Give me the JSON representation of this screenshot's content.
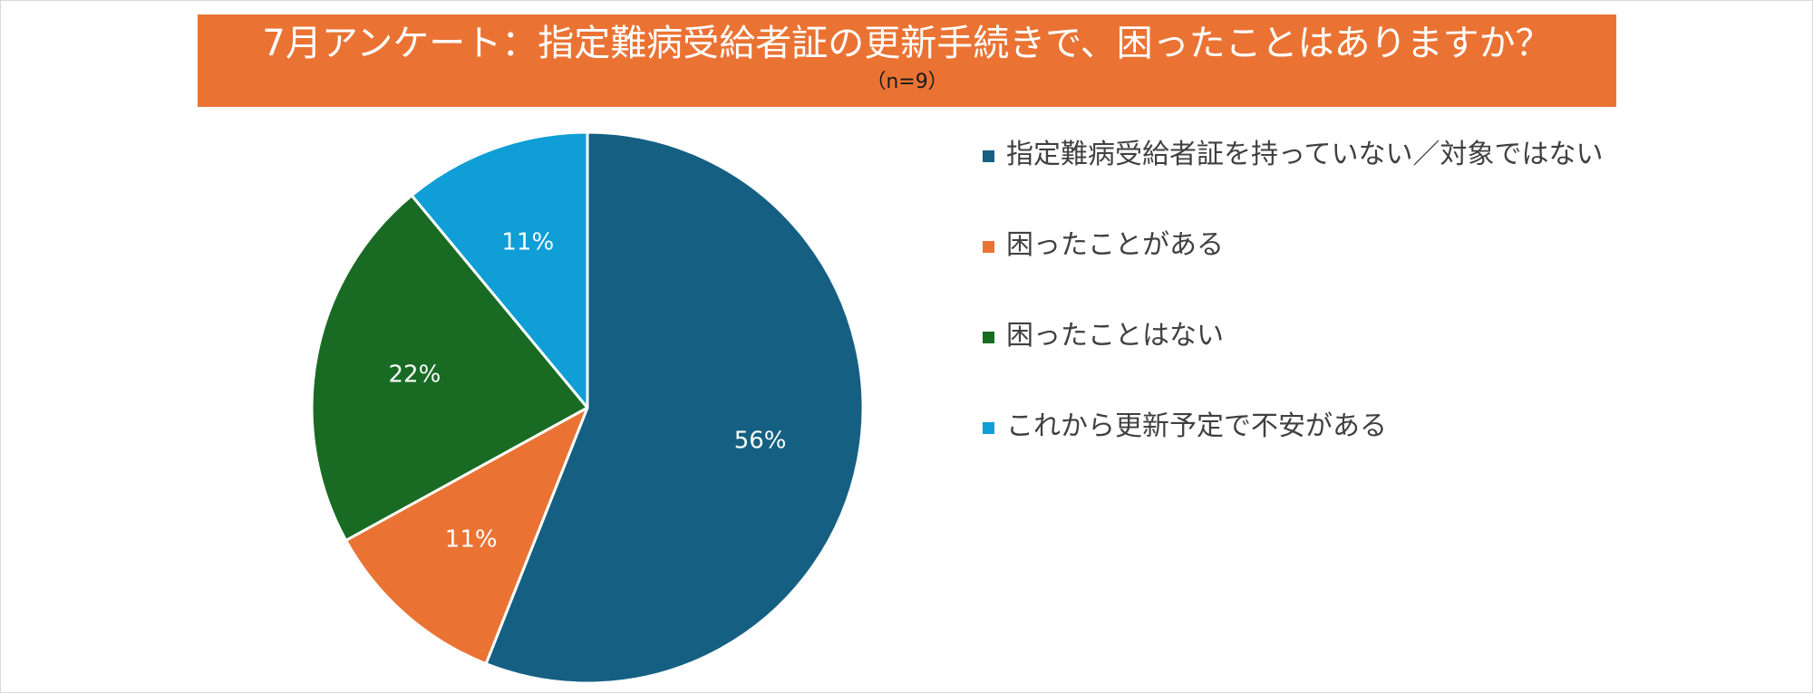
{
  "title": "7月アンケート：指定難病受給者証の更新手続きで、困ったことはありますか？",
  "subtitle": "（n=9）",
  "chart_data": {
    "type": "pie",
    "title": "7月アンケート：指定難病受給者証の更新手続きで、困ったことはありますか？",
    "subtitle": "（n=9）",
    "legend_position": "right",
    "slices": [
      {
        "label": "指定難病受給者証を持っていない／対象ではない",
        "value": 56,
        "display": "56%",
        "color": "#156082"
      },
      {
        "label": "困ったことがある",
        "value": 11,
        "display": "11%",
        "color": "#ea7334"
      },
      {
        "label": "困ったことはない",
        "value": 22,
        "display": "22%",
        "color": "#196b24"
      },
      {
        "label": "これから更新予定で不安がある",
        "value": 11,
        "display": "11%",
        "color": "#0f9ed5"
      }
    ]
  }
}
